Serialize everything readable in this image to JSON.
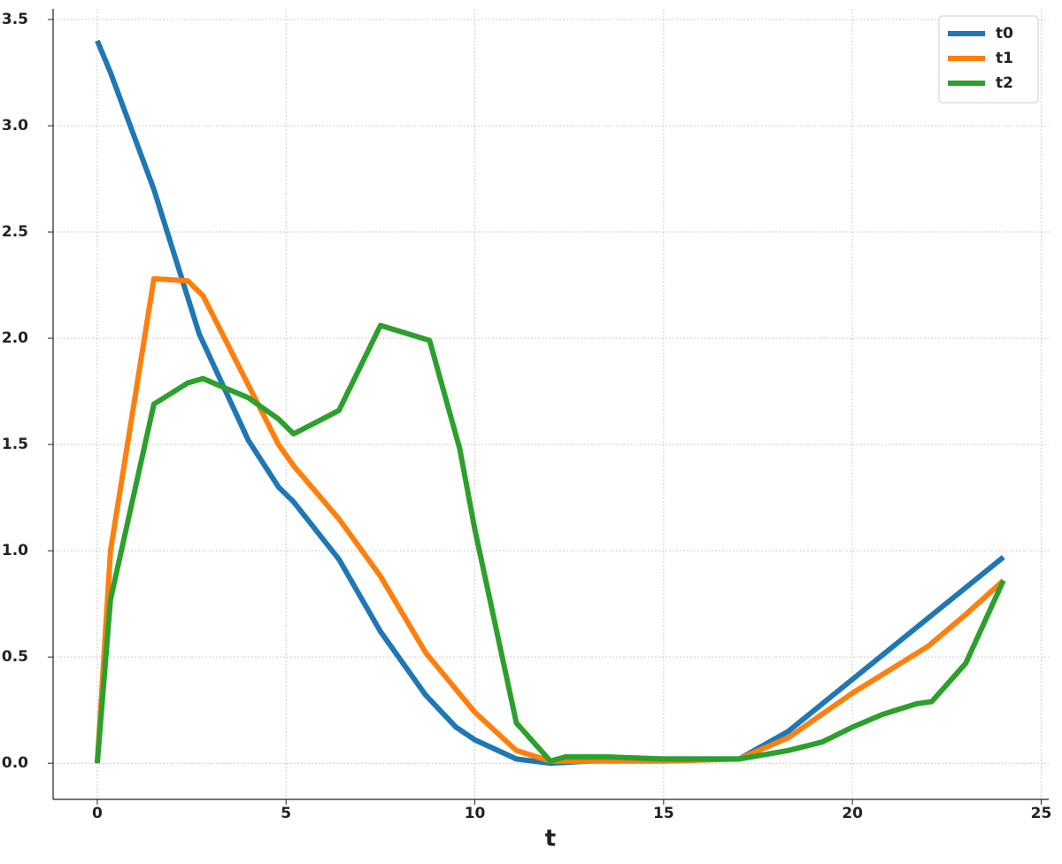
{
  "chart_data": {
    "type": "line",
    "xlabel": "t",
    "xlim": [
      -1.17,
      25.2
    ],
    "ylim": [
      -0.17,
      3.55
    ],
    "xticks": [
      0,
      5,
      10,
      15,
      20,
      25
    ],
    "yticks": [
      {
        "value": 0,
        "label": "0.0"
      },
      0.5,
      {
        "value": 1,
        "label": "1.0"
      },
      1.5,
      {
        "value": 2,
        "label": "2.0"
      },
      2.5,
      {
        "value": 3,
        "label": "3.0"
      },
      3.5
    ],
    "grid": true,
    "legend": "upper right",
    "series": [
      {
        "name": "t0",
        "color": "#1f77b4",
        "x": [
          0,
          0.35,
          1.5,
          2.7,
          4,
          4.8,
          5.2,
          6.4,
          7.5,
          8.7,
          9.5,
          10,
          11.1,
          12,
          13,
          15,
          17,
          18.3,
          24
        ],
        "values": [
          3.4,
          3.25,
          2.7,
          2.02,
          1.52,
          1.3,
          1.23,
          0.96,
          0.62,
          0.32,
          0.17,
          0.11,
          0.02,
          0.0,
          0.01,
          0.02,
          0.02,
          0.15,
          0.97
        ]
      },
      {
        "name": "t1",
        "color": "#ff7f0e",
        "x": [
          0,
          0.35,
          1.5,
          2.4,
          2.8,
          4,
          4.8,
          5.2,
          6.4,
          7.5,
          8.7,
          10,
          11.1,
          12,
          15,
          17,
          18.3,
          20,
          22,
          23,
          24
        ],
        "values": [
          0,
          1.0,
          2.28,
          2.27,
          2.2,
          1.78,
          1.5,
          1.4,
          1.15,
          0.88,
          0.52,
          0.24,
          0.06,
          0.01,
          0.01,
          0.02,
          0.12,
          0.33,
          0.55,
          0.7,
          0.86
        ]
      },
      {
        "name": "t2",
        "color": "#2ca02c",
        "x": [
          0,
          0.35,
          1.5,
          2.4,
          2.8,
          4,
          4.8,
          5.2,
          6.4,
          7.5,
          8.8,
          9.6,
          10,
          11.1,
          12,
          12.4,
          13.5,
          15,
          17,
          18.3,
          19.2,
          20,
          20.8,
          21.7,
          22.1,
          23,
          24
        ],
        "values": [
          0,
          0.77,
          1.69,
          1.79,
          1.81,
          1.72,
          1.62,
          1.55,
          1.66,
          2.06,
          1.99,
          1.48,
          1.1,
          0.19,
          0.01,
          0.03,
          0.03,
          0.02,
          0.02,
          0.06,
          0.1,
          0.17,
          0.23,
          0.28,
          0.29,
          0.47,
          0.86
        ]
      }
    ]
  }
}
